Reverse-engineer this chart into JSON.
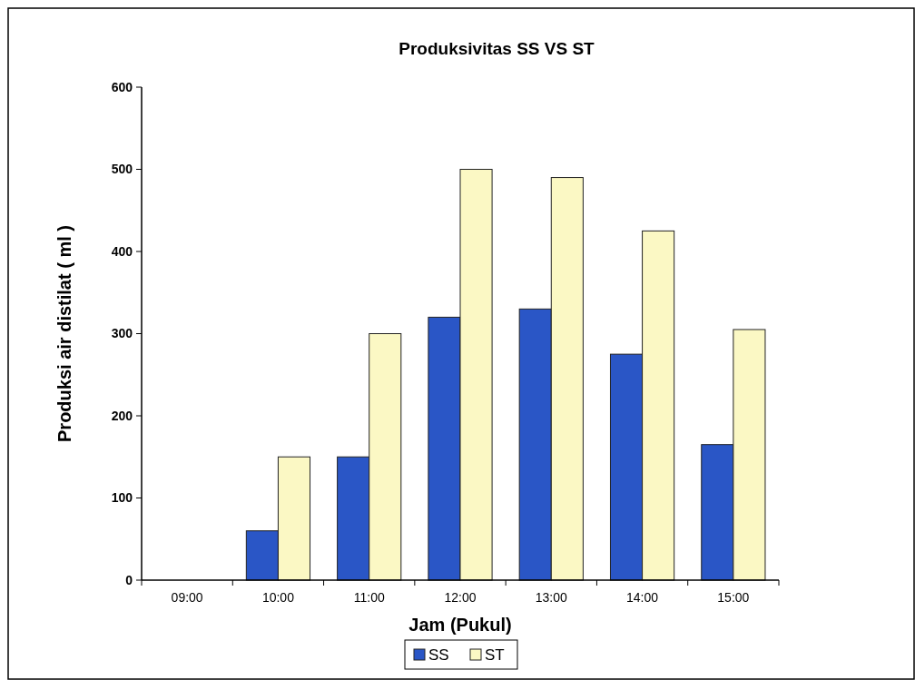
{
  "chart_data": {
    "type": "bar",
    "title": "Produksivitas SS VS ST",
    "xlabel": "Jam (Pukul)",
    "ylabel": "Produksi air distilat ( ml )",
    "categories": [
      "09:00",
      "10:00",
      "11:00",
      "12:00",
      "13:00",
      "14:00",
      "15:00"
    ],
    "series": [
      {
        "name": "SS",
        "color": "#2a56c6",
        "values": [
          0,
          60,
          150,
          320,
          330,
          275,
          165
        ]
      },
      {
        "name": "ST",
        "color": "#fbf8c4",
        "values": [
          0,
          150,
          300,
          500,
          490,
          425,
          305
        ]
      }
    ],
    "ylim": [
      0,
      600
    ],
    "yticks": [
      0,
      100,
      200,
      300,
      400,
      500,
      600
    ],
    "grid": false,
    "legend": "bottom"
  }
}
